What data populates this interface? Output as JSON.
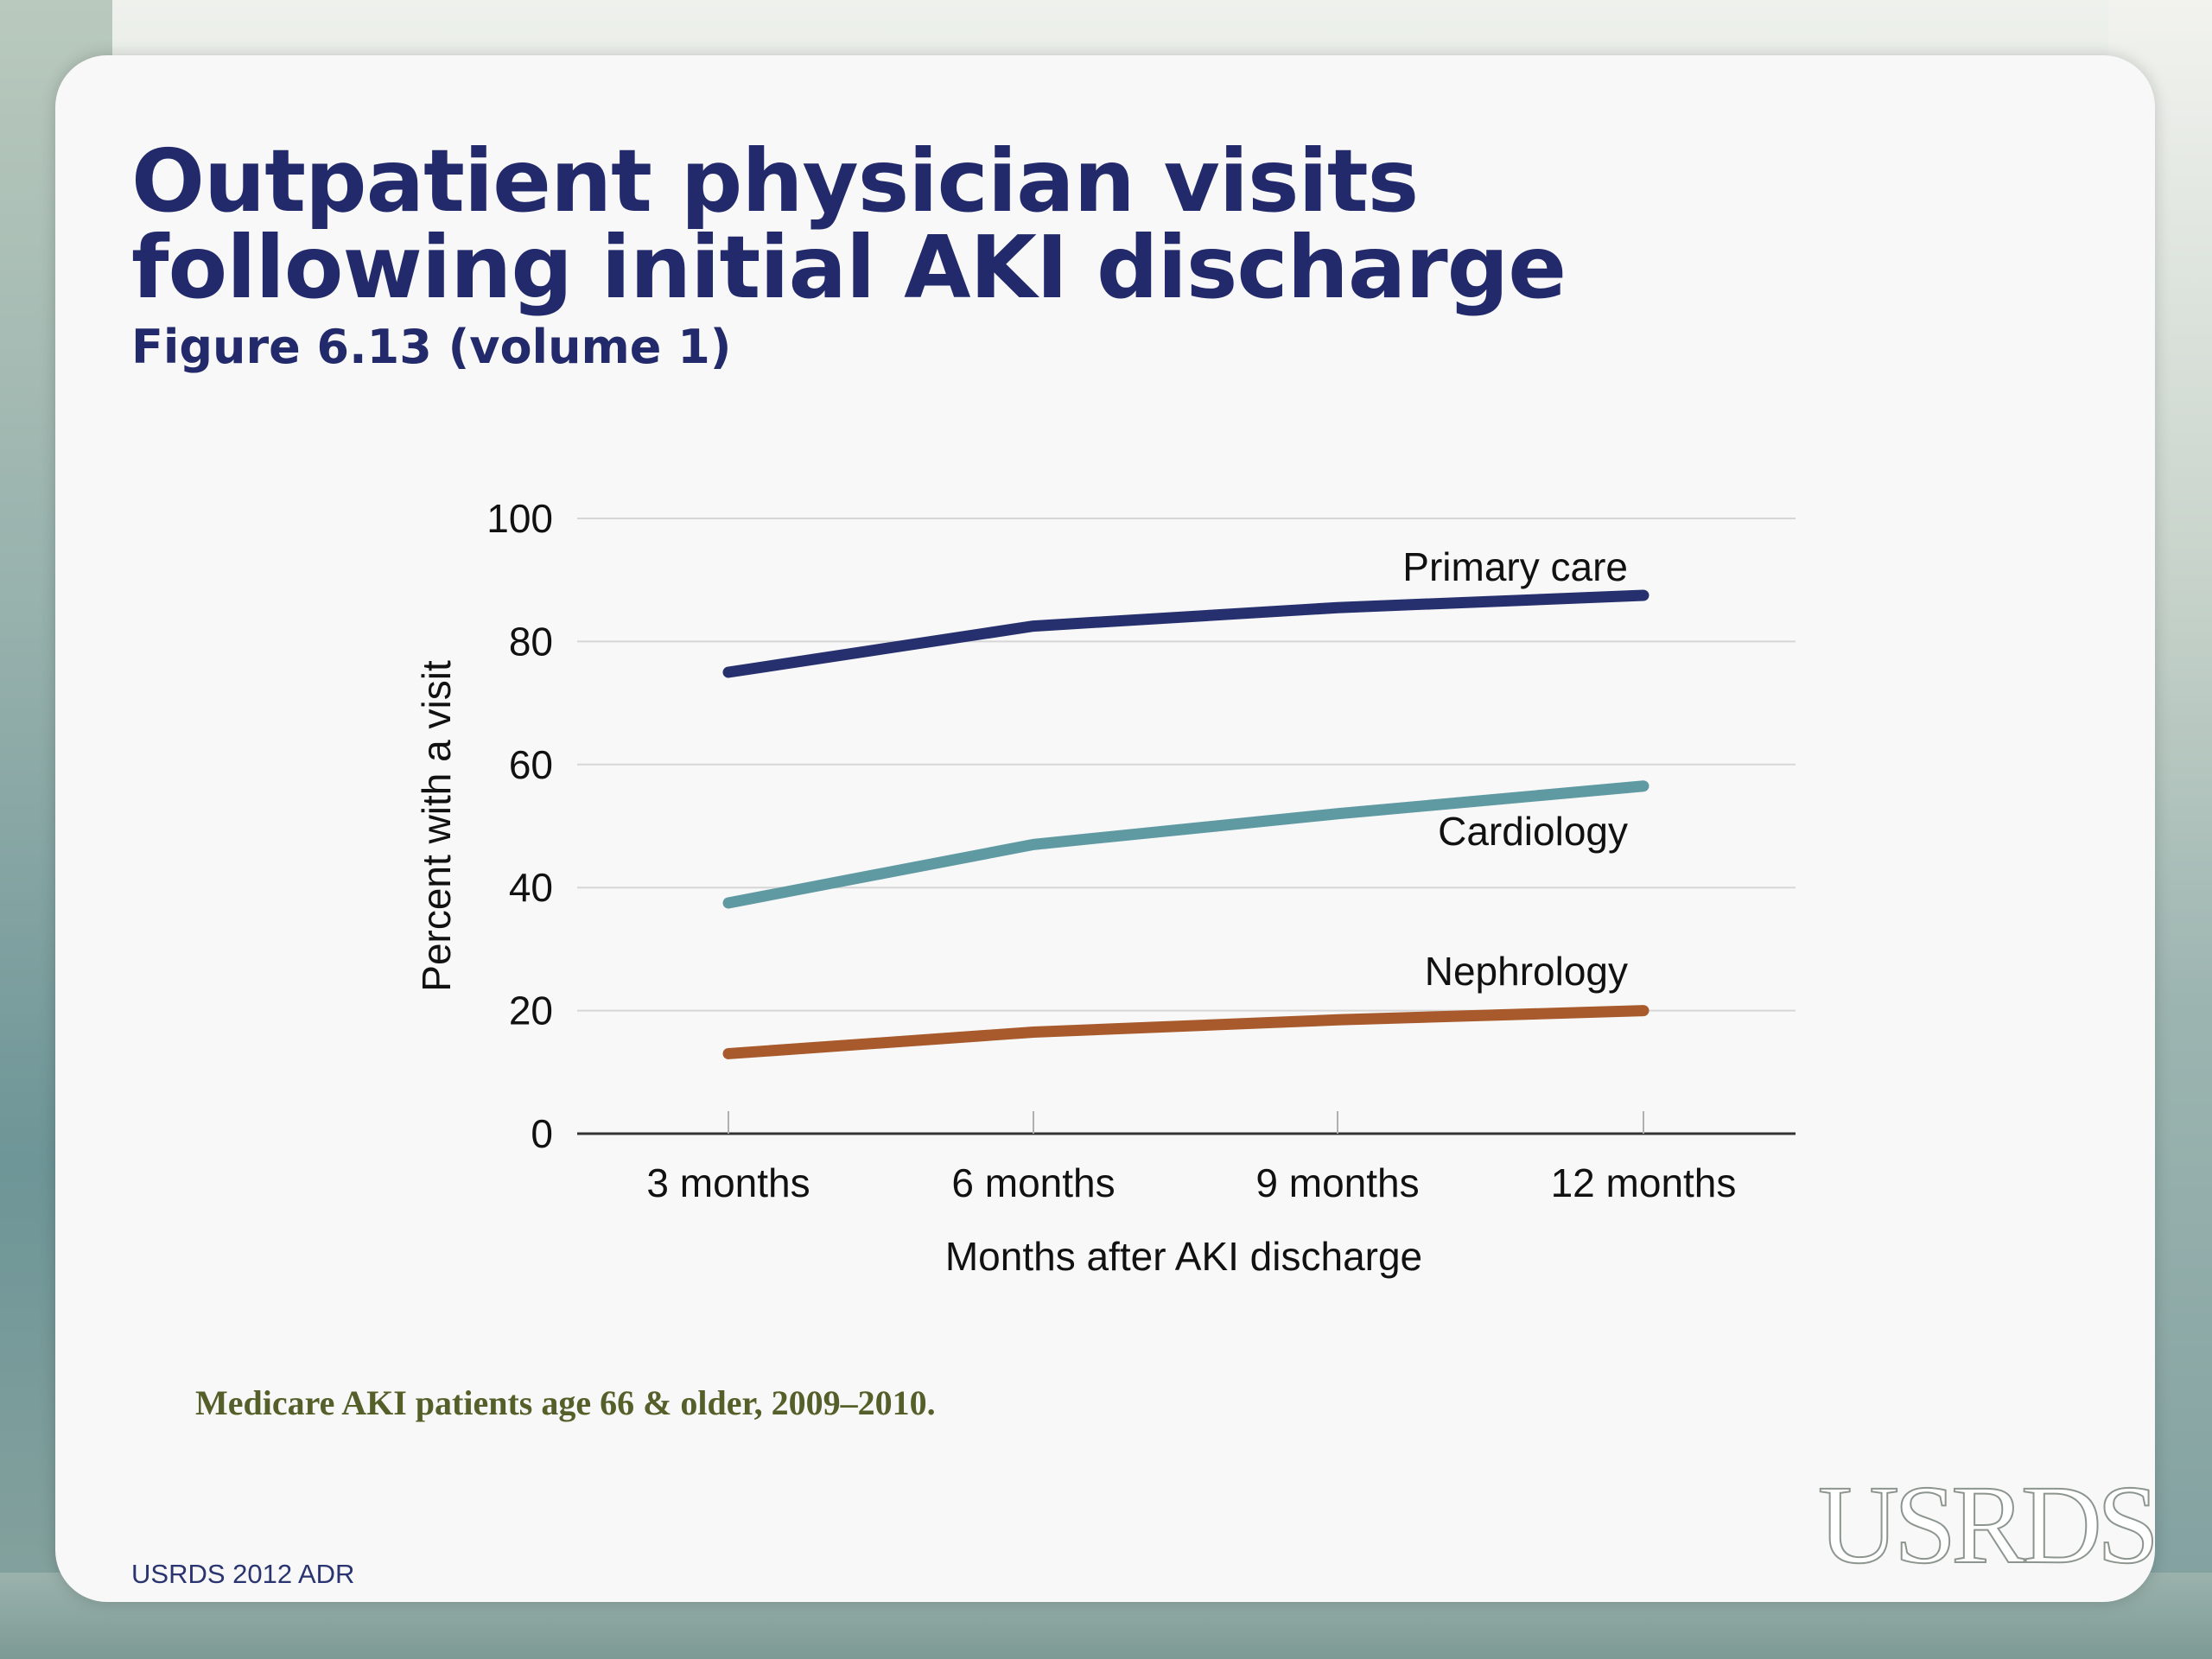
{
  "slide": {
    "title_line1": "Outpatient physician visits",
    "title_line2": "following initial AKI discharge",
    "subtitle": "Figure 6.13 (volume 1)",
    "note": "Medicare AKI patients age 66 & older, 2009–2010.",
    "footer": "USRDS 2012 ADR",
    "logo_text": "USRDS"
  },
  "colors": {
    "title": "#222a6b",
    "primary_care": "#27306f",
    "cardiology": "#5f9aa3",
    "nephrology": "#a85a2c",
    "gridline": "#d6d6d6",
    "axis": "#333333"
  },
  "chart_data": {
    "type": "line",
    "title": "",
    "xlabel": "Months after AKI discharge",
    "ylabel": "Percent with a visit",
    "categories": [
      "3 months",
      "6 months",
      "9 months",
      "12 months"
    ],
    "y_ticks": [
      "0",
      "20",
      "40",
      "60",
      "80",
      "100"
    ],
    "ylim": [
      0,
      100
    ],
    "grid": true,
    "series": [
      {
        "name": "Primary care",
        "key": "primary_care",
        "values": [
          75,
          82.5,
          85.5,
          87.5
        ]
      },
      {
        "name": "Cardiology",
        "key": "cardiology",
        "values": [
          37.5,
          47,
          52,
          56.5
        ]
      },
      {
        "name": "Nephrology",
        "key": "nephrology",
        "values": [
          13,
          16.5,
          18.5,
          20
        ]
      }
    ]
  }
}
